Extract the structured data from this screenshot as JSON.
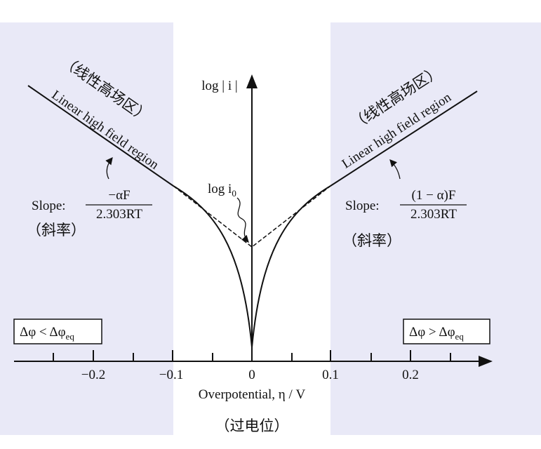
{
  "axis": {
    "x_label": "Overpotential, η / V",
    "x_label_cn": "（过电位）",
    "y_label": "log | i |",
    "ticks": [
      "−0.2",
      "−0.1",
      "0",
      "0.1",
      "0.2"
    ]
  },
  "left": {
    "region": "Linear high field region",
    "region_cn": "（线性高场区）",
    "slope": "Slope:",
    "numerator": "−αF",
    "denominator": "2.303RT",
    "slope_cn": "（斜率）",
    "condition": {
      "lhs": "Δφ <",
      "rhs": "Δφ",
      "sub": "eq"
    }
  },
  "right": {
    "region": "Linear high field region",
    "region_cn": "（线性高场区）",
    "slope": "Slope:",
    "numerator": "(1 − α)F",
    "denominator": "2.303RT",
    "slope_cn": "（斜率）",
    "condition": {
      "lhs": "Δφ >",
      "rhs": "Δφ",
      "sub": "eq"
    }
  },
  "exchange": {
    "text": "log i",
    "sub": "0"
  }
}
